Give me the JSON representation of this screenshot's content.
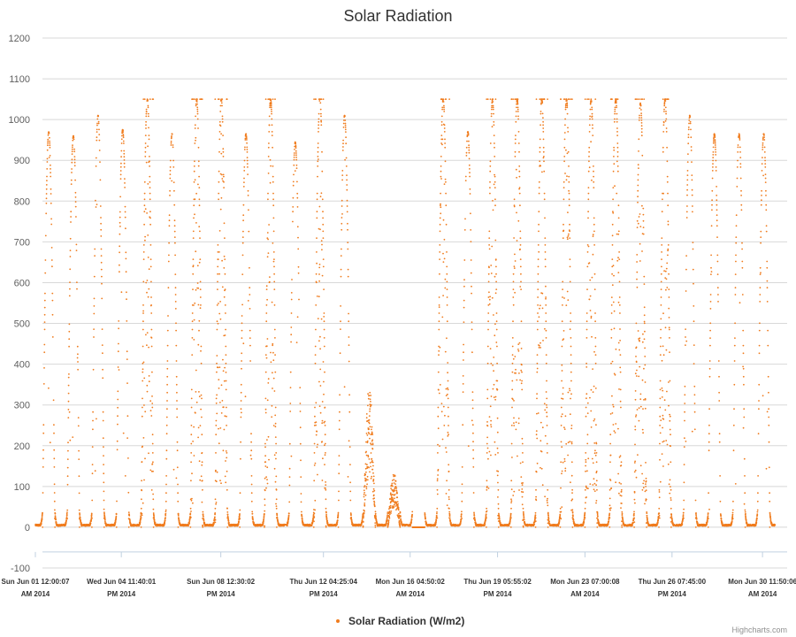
{
  "credits": "Highcharts.com",
  "colors": {
    "series": "#f07c1e",
    "grid": "#d8d8d8",
    "axis": "#c0d0e0"
  },
  "chart_data": {
    "type": "scatter",
    "title": "Solar Radiation",
    "xlabel": "",
    "ylabel": "",
    "ylim": [
      -100,
      1200
    ],
    "yticks": [
      1200,
      1100,
      1000,
      900,
      800,
      700,
      600,
      500,
      400,
      300,
      200,
      100,
      0,
      -100
    ],
    "xlim": [
      "2014-06-01T00:00:07",
      "2014-07-01T11:50:06"
    ],
    "xticks": [
      {
        "value": "2014-06-01T00:00:07",
        "line1": "Sun Jun 01 12:00:07",
        "line2": "AM 2014"
      },
      {
        "value": "2014-06-04T11:40:01",
        "line1": "Wed Jun 04 11:40:01",
        "line2": "PM 2014"
      },
      {
        "value": "2014-06-08T12:30:02",
        "line1": "Sun Jun 08 12:30:02",
        "line2": "PM 2014"
      },
      {
        "value": "2014-06-12T16:25:04",
        "line1": "Thu Jun 12 04:25:04",
        "line2": "PM 2014"
      },
      {
        "value": "2014-06-16T04:50:02",
        "line1": "Mon Jun 16 04:50:02",
        "line2": "AM 2014"
      },
      {
        "value": "2014-06-19T17:55:02",
        "line1": "Thu Jun 19 05:55:02",
        "line2": "PM 2014"
      },
      {
        "value": "2014-06-23T07:00:08",
        "line1": "Mon Jun 23 07:00:08",
        "line2": "AM 2014"
      },
      {
        "value": "2014-06-26T19:45:00",
        "line1": "Thu Jun 26 07:45:00",
        "line2": "PM 2014"
      },
      {
        "value": "2014-06-30T11:50:06",
        "line1": "Mon Jun 30 11:50:06",
        "line2": "AM 2014"
      }
    ],
    "grid": true,
    "legend_position": "bottom-center",
    "series": [
      {
        "name": "Solar Radiation (W/m2)",
        "daily_peaks": [
          {
            "date": "2014-06-01",
            "peak": 970
          },
          {
            "date": "2014-06-02",
            "peak": 960
          },
          {
            "date": "2014-06-03",
            "peak": 1010
          },
          {
            "date": "2014-06-04",
            "peak": 975
          },
          {
            "date": "2014-06-05",
            "peak": 1050
          },
          {
            "date": "2014-06-06",
            "peak": 965
          },
          {
            "date": "2014-06-07",
            "peak": 1050
          },
          {
            "date": "2014-06-08",
            "peak": 1050
          },
          {
            "date": "2014-06-09",
            "peak": 965
          },
          {
            "date": "2014-06-10",
            "peak": 1050
          },
          {
            "date": "2014-06-11",
            "peak": 945
          },
          {
            "date": "2014-06-12",
            "peak": 1050
          },
          {
            "date": "2014-06-13",
            "peak": 1010
          },
          {
            "date": "2014-06-14",
            "peak": 350
          },
          {
            "date": "2014-06-15",
            "peak": 135
          },
          {
            "date": "2014-06-16",
            "peak": 0
          },
          {
            "date": "2014-06-17",
            "peak": 1050
          },
          {
            "date": "2014-06-18",
            "peak": 970
          },
          {
            "date": "2014-06-19",
            "peak": 1050
          },
          {
            "date": "2014-06-20",
            "peak": 1050
          },
          {
            "date": "2014-06-21",
            "peak": 1050
          },
          {
            "date": "2014-06-22",
            "peak": 1050
          },
          {
            "date": "2014-06-23",
            "peak": 1050
          },
          {
            "date": "2014-06-24",
            "peak": 1050
          },
          {
            "date": "2014-06-25",
            "peak": 1040
          },
          {
            "date": "2014-06-26",
            "peak": 1050
          },
          {
            "date": "2014-06-27",
            "peak": 1010
          },
          {
            "date": "2014-06-28",
            "peak": 965
          },
          {
            "date": "2014-06-29",
            "peak": 965
          },
          {
            "date": "2014-06-30",
            "peak": 965
          }
        ],
        "night_value": 0
      }
    ]
  }
}
